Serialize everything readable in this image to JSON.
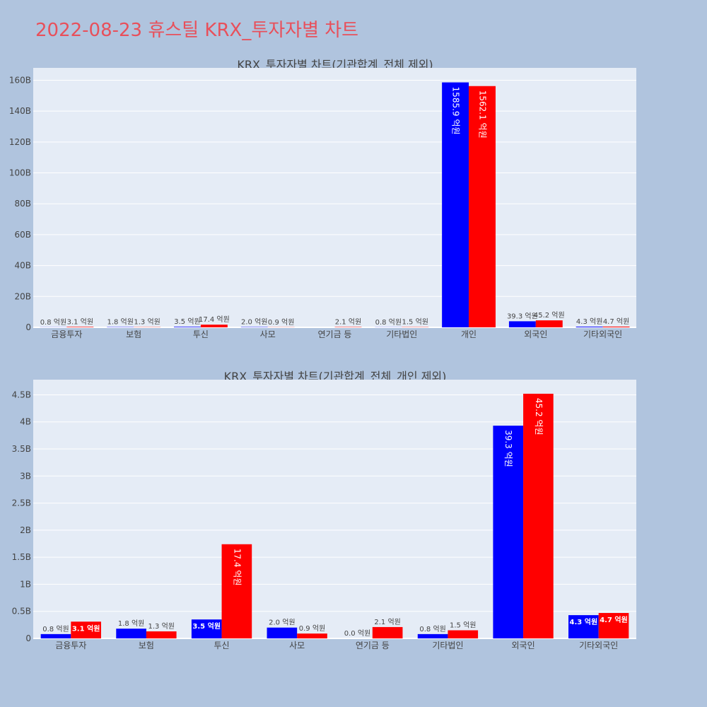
{
  "page_title": "2022-08-23 휴스틸 KRX_투자자별 차트",
  "colors": {
    "buy": "#0000ff",
    "sell": "#ff0000",
    "plot_bg": "#e5ecf6",
    "page_bg": "#b0c4de",
    "title": "#e8505b"
  },
  "chart_data": [
    {
      "type": "bar",
      "title": "KRX_투자자별 차트(기관합계_전체 제외)",
      "categories": [
        "금융투자",
        "보험",
        "투신",
        "사모",
        "연기금 등",
        "기타법인",
        "개인",
        "외국인",
        "기타외국인"
      ],
      "series": [
        {
          "values": [
            0.08,
            0.18,
            0.35,
            0.2,
            0,
            0.08,
            158.59,
            3.93,
            0.43
          ],
          "labels": [
            "0.8 억원",
            "1.8 억원",
            "3.5 억원",
            "2.0 억원",
            "",
            "0.8 억원",
            "1585.9 억원",
            "39.3 억원",
            "4.3 억원"
          ]
        },
        {
          "values": [
            0.31,
            0.13,
            1.74,
            0.09,
            0.21,
            0.15,
            156.21,
            4.52,
            0.47
          ],
          "labels": [
            "3.1 억원",
            "1.3 억원",
            "17.4 억원",
            "0.9 억원",
            "2.1 억원",
            "1.5 억원",
            "1562.1 억원",
            "45.2 억원",
            "4.7 억원"
          ]
        }
      ],
      "y_ticks": [
        "0",
        "20B",
        "40B",
        "60B",
        "80B",
        "100B",
        "120B",
        "140B",
        "160B"
      ],
      "ylim": [
        0,
        168
      ],
      "grid": true
    },
    {
      "type": "bar",
      "title": "KRX_투자자별 차트(기관합계_전체_개인 제외)",
      "categories": [
        "금융투자",
        "보험",
        "투신",
        "사모",
        "연기금 등",
        "기타법인",
        "외국인",
        "기타외국인"
      ],
      "series": [
        {
          "values": [
            0.08,
            0.18,
            0.35,
            0.2,
            0,
            0.08,
            3.93,
            0.43
          ],
          "labels": [
            "0.8 억원",
            "1.8 억원",
            "3.5 억원",
            "2.0 억원",
            "0.0 억원",
            "0.8 억원",
            "39.3 억원",
            "4.3 억원"
          ]
        },
        {
          "values": [
            0.31,
            0.13,
            1.74,
            0.09,
            0.21,
            0.15,
            4.52,
            0.47
          ],
          "labels": [
            "3.1 억원",
            "1.3 억원",
            "17.4 억원",
            "0.9 억원",
            "2.1 억원",
            "1.5 억원",
            "45.2 억원",
            "4.7 억원"
          ]
        }
      ],
      "y_ticks": [
        "0",
        "0.5B",
        "1B",
        "1.5B",
        "2B",
        "2.5B",
        "3B",
        "3.5B",
        "4B",
        "4.5B"
      ],
      "ylim": [
        0,
        4.78
      ],
      "grid": true
    }
  ]
}
